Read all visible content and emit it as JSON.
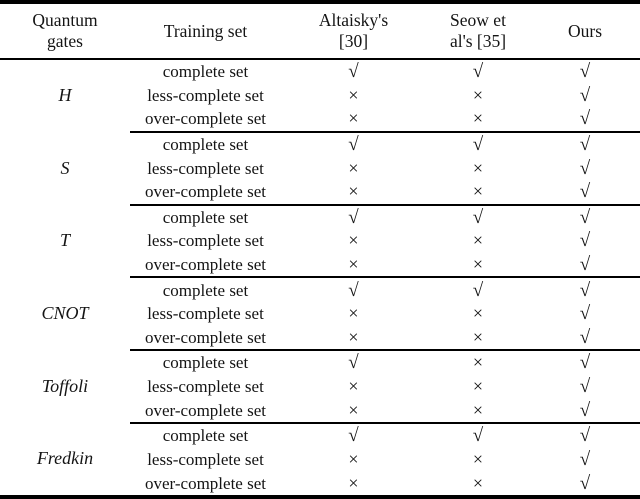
{
  "page": {
    "background_color": "#ffffff",
    "text_color": "#141414",
    "rule_color": "#000000"
  },
  "table": {
    "headers": [
      {
        "label": "Quantum gates",
        "lines": [
          "Quantum",
          "gates"
        ]
      },
      {
        "label": "Training set",
        "lines": [
          "Training set"
        ]
      },
      {
        "label": "Altaisky's [30]",
        "lines": [
          "Altaisky's",
          "[30]"
        ]
      },
      {
        "label": "Seow et al's [35]",
        "lines": [
          "Seow et",
          "al's [35]"
        ]
      },
      {
        "label": "Ours",
        "lines": [
          "Ours"
        ]
      }
    ],
    "symbols": {
      "check": "√",
      "cross": "×"
    },
    "groups": [
      {
        "gate": "H",
        "rows": [
          {
            "set": "complete set",
            "marks": [
              "√",
              "√",
              "√"
            ]
          },
          {
            "set": "less-complete set",
            "marks": [
              "×",
              "×",
              "√"
            ]
          },
          {
            "set": "over-complete set",
            "marks": [
              "×",
              "×",
              "√"
            ]
          }
        ]
      },
      {
        "gate": "S",
        "rows": [
          {
            "set": "complete set",
            "marks": [
              "√",
              "√",
              "√"
            ]
          },
          {
            "set": "less-complete set",
            "marks": [
              "×",
              "×",
              "√"
            ]
          },
          {
            "set": "over-complete set",
            "marks": [
              "×",
              "×",
              "√"
            ]
          }
        ]
      },
      {
        "gate": "T",
        "rows": [
          {
            "set": "complete set",
            "marks": [
              "√",
              "√",
              "√"
            ]
          },
          {
            "set": "less-complete set",
            "marks": [
              "×",
              "×",
              "√"
            ]
          },
          {
            "set": "over-complete set",
            "marks": [
              "×",
              "×",
              "√"
            ]
          }
        ]
      },
      {
        "gate": "CNOT",
        "rows": [
          {
            "set": "complete set",
            "marks": [
              "√",
              "√",
              "√"
            ]
          },
          {
            "set": "less-complete set",
            "marks": [
              "×",
              "×",
              "√"
            ]
          },
          {
            "set": "over-complete set",
            "marks": [
              "×",
              "×",
              "√"
            ]
          }
        ]
      },
      {
        "gate": "Toffoli",
        "rows": [
          {
            "set": "complete set",
            "marks": [
              "√",
              "×",
              "√"
            ]
          },
          {
            "set": "less-complete set",
            "marks": [
              "×",
              "×",
              "√"
            ]
          },
          {
            "set": "over-complete set",
            "marks": [
              "×",
              "×",
              "√"
            ]
          }
        ]
      },
      {
        "gate": "Fredkin",
        "rows": [
          {
            "set": "complete set",
            "marks": [
              "√",
              "√",
              "√"
            ]
          },
          {
            "set": "less-complete set",
            "marks": [
              "×",
              "×",
              "√"
            ]
          },
          {
            "set": "over-complete set",
            "marks": [
              "×",
              "×",
              "√"
            ]
          }
        ]
      }
    ]
  }
}
